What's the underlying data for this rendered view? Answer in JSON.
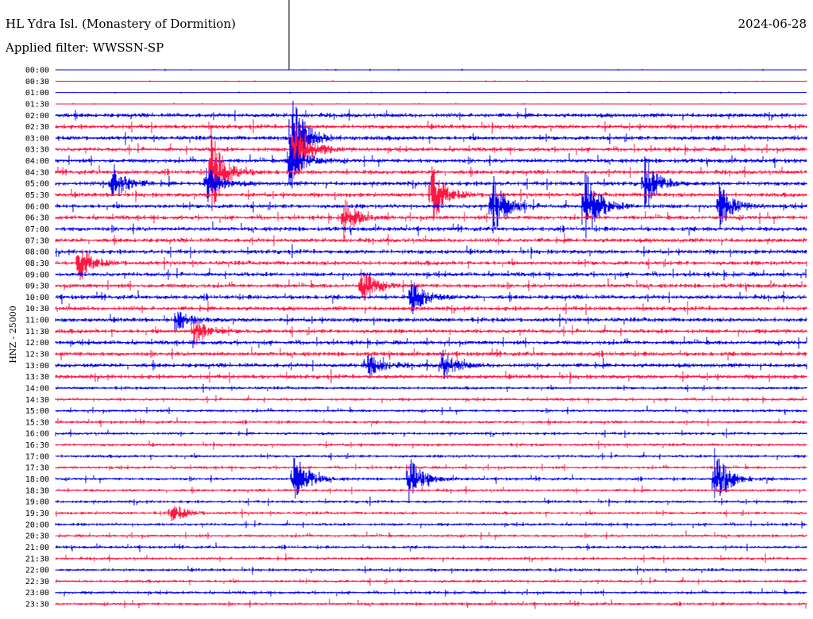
{
  "header": {
    "title": "HL Ydra Isl. (Monastery of Dormition)",
    "filter": "Applied filter: WWSSN-SP",
    "date": "2024-06-28"
  },
  "chart_data": {
    "type": "line",
    "title": "HL Ydra Isl. (Monastery of Dormition)",
    "ylabel": "HNZ - 25000",
    "minutes_per_line": 30,
    "colors": [
      "#0000ee",
      "#ff1744"
    ],
    "row_labels": [
      "00:00",
      "00:30",
      "01:00",
      "01:30",
      "02:00",
      "02:30",
      "03:00",
      "03:30",
      "04:00",
      "04:30",
      "05:00",
      "05:30",
      "06:00",
      "06:30",
      "07:00",
      "07:30",
      "08:00",
      "08:30",
      "09:00",
      "09:30",
      "10:00",
      "10:30",
      "11:00",
      "11:30",
      "12:00",
      "12:30",
      "13:00",
      "13:30",
      "14:00",
      "14:30",
      "15:00",
      "15:30",
      "16:00",
      "16:30",
      "17:00",
      "17:30",
      "18:00",
      "18:30",
      "19:00",
      "19:30",
      "20:00",
      "20:30",
      "21:00",
      "21:30",
      "22:00",
      "22:30",
      "23:00",
      "23:30"
    ],
    "events": [
      {
        "row": 6,
        "minute": 9.4,
        "amplitude": 70
      },
      {
        "row": 7,
        "minute": 9.5,
        "amplitude": 55
      },
      {
        "row": 8,
        "minute": 9.3,
        "amplitude": 40
      },
      {
        "row": 9,
        "minute": 6.2,
        "amplitude": 60
      },
      {
        "row": 10,
        "minute": 6.0,
        "amplitude": 25
      },
      {
        "row": 10,
        "minute": 2.2,
        "amplitude": 30
      },
      {
        "row": 10,
        "minute": 23.5,
        "amplitude": 35
      },
      {
        "row": 11,
        "minute": 15.0,
        "amplitude": 40
      },
      {
        "row": 12,
        "minute": 17.4,
        "amplitude": 45
      },
      {
        "row": 12,
        "minute": 21.1,
        "amplitude": 60
      },
      {
        "row": 12,
        "minute": 26.5,
        "amplitude": 30
      },
      {
        "row": 13,
        "minute": 11.5,
        "amplitude": 25
      },
      {
        "row": 17,
        "minute": 0.9,
        "amplitude": 25
      },
      {
        "row": 19,
        "minute": 12.2,
        "amplitude": 25
      },
      {
        "row": 20,
        "minute": 14.2,
        "amplitude": 25
      },
      {
        "row": 22,
        "minute": 4.8,
        "amplitude": 15
      },
      {
        "row": 23,
        "minute": 5.5,
        "amplitude": 20
      },
      {
        "row": 26,
        "minute": 12.4,
        "amplitude": 20
      },
      {
        "row": 26,
        "minute": 15.4,
        "amplitude": 20
      },
      {
        "row": 36,
        "minute": 9.5,
        "amplitude": 40
      },
      {
        "row": 36,
        "minute": 14.1,
        "amplitude": 30
      },
      {
        "row": 36,
        "minute": 26.3,
        "amplitude": 45
      },
      {
        "row": 39,
        "minute": 4.6,
        "amplitude": 15
      }
    ]
  }
}
